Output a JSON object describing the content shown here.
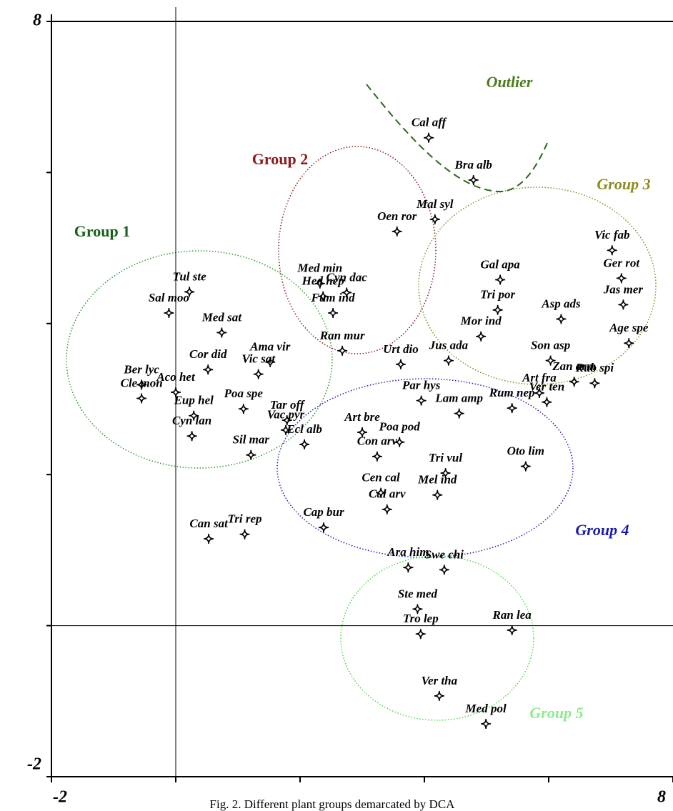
{
  "chart_data": {
    "type": "scatter",
    "caption": "Fig. 2. Different plant groups demarcated by DCA",
    "annotations": [
      "Group 1",
      "Group 2",
      "Group 3",
      "Group 4",
      "Group 5",
      "Outlier"
    ],
    "xlim": [
      -2,
      8
    ],
    "ylim": [
      -2,
      8
    ],
    "xticks": [
      -2,
      8
    ],
    "yticks": [
      -2,
      8
    ],
    "minor_xticks": [
      0,
      2,
      4,
      6
    ],
    "minor_yticks": [
      0,
      2,
      4,
      6
    ],
    "zero_lines": true,
    "color": "#000000",
    "labels": [
      "Cal aff",
      "Bra alb",
      "Mal syl",
      "Oen ror",
      "Med min",
      "Hed nep",
      "Cyn dac",
      "Fum ind",
      "Ran mur",
      "Sal moo",
      "Tul ste",
      "Med sat",
      "Cor did",
      "Ama vir",
      "Vic sat",
      "Ber lyc",
      "Cle mon",
      "Aco het",
      "Eup hel",
      "Poa spe",
      "Cyn lan",
      "Tar off",
      "Vac pyr",
      "Sil mar",
      "Tri rep",
      "Can sat",
      "Urt dio",
      "Art bre",
      "Par hys",
      "Lam amp",
      "Poa pod",
      "Ecl alb",
      "Con arv",
      "Tri vul",
      "Cap bur",
      "Mel ind",
      "Cal arv",
      "Cen cal",
      "Oto lim",
      "Jus ada",
      "Gal apa",
      "Tri por",
      "Mor ind",
      "Rum nep",
      "Asp ads",
      "Son asp",
      "Vic fab",
      "Ger rot",
      "Jas mer",
      "Age spe",
      "Rub spi",
      "Zan arm",
      "Ver ten",
      "Art fra",
      "Ara him",
      "Swe chi",
      "Ste med",
      "Tro lep",
      "Ran lea",
      "Ver tha",
      "Med pol"
    ],
    "x": [
      4.07,
      4.79,
      4.17,
      3.56,
      2.32,
      2.37,
      2.75,
      2.53,
      2.68,
      -0.11,
      0.22,
      0.74,
      0.52,
      1.52,
      1.33,
      -0.55,
      -0.55,
      0.0,
      0.29,
      1.09,
      0.26,
      1.79,
      1.77,
      1.21,
      1.11,
      0.53,
      3.62,
      3.0,
      3.95,
      4.56,
      3.6,
      2.07,
      3.24,
      4.34,
      2.38,
      4.21,
      3.4,
      3.3,
      5.63,
      4.39,
      5.22,
      5.18,
      4.91,
      5.41,
      6.2,
      6.03,
      7.02,
      7.17,
      7.2,
      7.29,
      6.74,
      6.41,
      5.97,
      5.85,
      3.74,
      4.32,
      3.89,
      3.94,
      5.41,
      4.24,
      4.99
    ],
    "y": [
      6.46,
      5.9,
      5.38,
      5.22,
      4.53,
      4.36,
      4.41,
      4.14,
      3.64,
      4.14,
      4.42,
      3.88,
      3.39,
      3.49,
      3.33,
      3.19,
      3.01,
      3.09,
      2.78,
      2.87,
      2.51,
      2.72,
      2.59,
      2.26,
      1.21,
      1.15,
      3.46,
      2.56,
      2.98,
      2.81,
      2.43,
      2.4,
      2.24,
      2.02,
      1.3,
      1.73,
      1.54,
      1.76,
      2.11,
      3.51,
      4.58,
      4.18,
      3.83,
      2.88,
      4.06,
      3.51,
      4.97,
      4.6,
      4.25,
      3.74,
      3.21,
      3.23,
      2.96,
      3.08,
      0.77,
      0.74,
      0.22,
      -0.11,
      -0.06,
      -0.93,
      -1.3
    ]
  }
}
